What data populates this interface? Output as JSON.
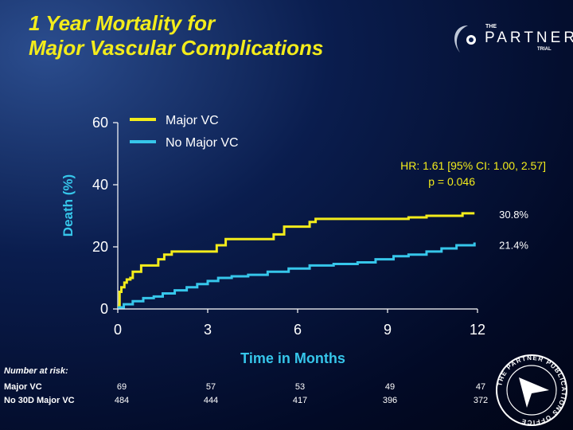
{
  "title": {
    "line1": "1 Year Mortality for",
    "line2": "Major Vascular Complications"
  },
  "logo": {
    "the": "THE",
    "name": "PARTNER",
    "trial": "TRIAL"
  },
  "seal": {
    "text": "THE PARTNER PUBLICATIONS OFFICE"
  },
  "colors": {
    "title": "#f3ec1b",
    "major_vc": "#f3ec1b",
    "no_major_vc": "#36c6ea",
    "annotation": "#f3ec1b",
    "background": "#0a1d4e"
  },
  "chart_data": {
    "type": "line",
    "subtype": "kaplan-meier step curve",
    "xlabel": "Time in Months",
    "ylabel": "Death (%)",
    "xticks": [
      "0",
      "3",
      "6",
      "9",
      "12"
    ],
    "yticks": [
      "0",
      "20",
      "40",
      "60"
    ],
    "xlim": [
      0,
      12
    ],
    "ylim": [
      0,
      60
    ],
    "grid": false,
    "legend_position": "top-right",
    "annotations": {
      "hr": "HR: 1.61 [95% CI: 1.00, 2.57]",
      "p": "p = 0.046"
    },
    "end_labels": [
      "30.8%",
      "21.4%"
    ],
    "series": [
      {
        "name": "Major VC",
        "color": "#f3ec1b",
        "end_label": "30.8%",
        "x": [
          0,
          0.06,
          0.12,
          0.22,
          0.3,
          0.42,
          0.5,
          0.78,
          1.35,
          1.55,
          1.8,
          3.3,
          3.6,
          5.2,
          5.55,
          6.4,
          6.6,
          9.7,
          10.3,
          11.5,
          11.9
        ],
        "y": [
          1.0,
          5.5,
          7.0,
          8.5,
          9.5,
          10.0,
          12.0,
          14.0,
          16.0,
          17.5,
          18.5,
          20.5,
          22.5,
          24.0,
          26.5,
          28.0,
          29.0,
          29.5,
          30.0,
          30.8,
          30.8
        ]
      },
      {
        "name": "No Major VC",
        "color": "#36c6ea",
        "end_label": "21.4%",
        "x": [
          0,
          0.2,
          0.5,
          0.85,
          1.2,
          1.5,
          1.9,
          2.3,
          2.65,
          3.0,
          3.35,
          3.8,
          4.35,
          5.0,
          5.7,
          6.4,
          7.2,
          8.0,
          8.6,
          9.2,
          9.7,
          10.3,
          10.8,
          11.3,
          11.9
        ],
        "y": [
          0.5,
          1.5,
          2.5,
          3.5,
          4.0,
          5.0,
          6.0,
          7.0,
          8.0,
          9.0,
          10.0,
          10.5,
          11.0,
          12.0,
          13.0,
          14.0,
          14.5,
          15.0,
          16.0,
          17.0,
          17.5,
          18.5,
          19.5,
          20.5,
          21.4
        ]
      }
    ]
  },
  "risk_table": {
    "title": "Number at risk:",
    "rows": [
      {
        "label": "Major VC",
        "values": [
          "69",
          "57",
          "53",
          "49",
          "47"
        ]
      },
      {
        "label": "No 30D Major VC",
        "values": [
          "484",
          "444",
          "417",
          "396",
          "372"
        ]
      }
    ]
  }
}
